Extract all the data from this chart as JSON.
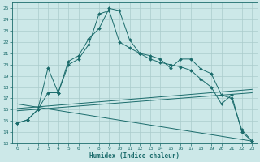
{
  "xlabel": "Humidex (Indice chaleur)",
  "xlim": [
    -0.5,
    23.5
  ],
  "ylim": [
    13,
    25.5
  ],
  "yticks": [
    13,
    14,
    15,
    16,
    17,
    18,
    19,
    20,
    21,
    22,
    23,
    24,
    25
  ],
  "xticks": [
    0,
    1,
    2,
    3,
    4,
    5,
    6,
    7,
    8,
    9,
    10,
    11,
    12,
    13,
    14,
    15,
    16,
    17,
    18,
    19,
    20,
    21,
    22,
    23
  ],
  "bg_color": "#cce8e8",
  "grid_color": "#aacccc",
  "line_color": "#1a6b6b",
  "series1_x": [
    0,
    1,
    2,
    3,
    4,
    5,
    6,
    7,
    8,
    9,
    10,
    11,
    12,
    13,
    14,
    15,
    16,
    17,
    18,
    19,
    20,
    21,
    22,
    23
  ],
  "series1_y": [
    14.8,
    15.1,
    16.0,
    19.7,
    17.5,
    20.3,
    20.8,
    22.3,
    23.2,
    25.0,
    24.8,
    22.2,
    21.0,
    20.8,
    20.5,
    19.7,
    20.5,
    20.5,
    19.6,
    19.2,
    17.3,
    17.0,
    14.2,
    13.2
  ],
  "series2_x": [
    0,
    1,
    2,
    3,
    4,
    5,
    6,
    7,
    8,
    9,
    10,
    11,
    12,
    13,
    14,
    15,
    16,
    17,
    18,
    19,
    20,
    21,
    22,
    23
  ],
  "series2_y": [
    14.8,
    15.1,
    16.0,
    17.5,
    17.5,
    20.0,
    20.5,
    21.8,
    24.5,
    24.8,
    22.0,
    21.5,
    21.0,
    20.5,
    20.2,
    20.0,
    19.8,
    19.5,
    18.7,
    18.0,
    16.5,
    17.3,
    14.0,
    13.2
  ],
  "trend1_x": [
    0,
    23
  ],
  "trend1_y": [
    16.1,
    17.8
  ],
  "trend2_x": [
    0,
    23
  ],
  "trend2_y": [
    15.9,
    17.5
  ],
  "trend3_x": [
    0,
    23
  ],
  "trend3_y": [
    16.5,
    13.2
  ]
}
